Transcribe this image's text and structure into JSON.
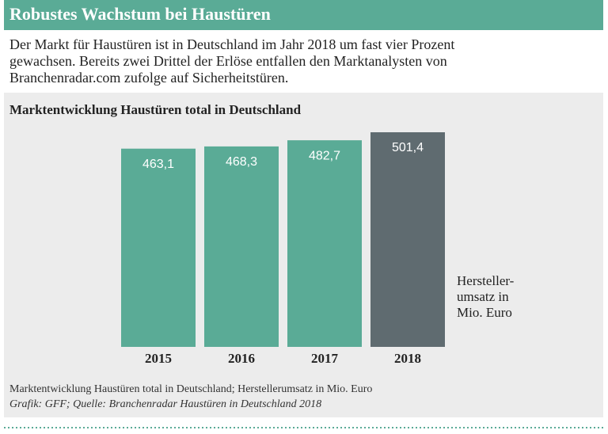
{
  "title": "Robustes Wachstum bei Haustüren",
  "intro_lines": [
    "Der Markt für Haustüren ist in Deutschland im Jahr 2018 um fast vier Prozent",
    "gewachsen. Bereits zwei Drittel der Erlöse entfallen den Marktanalysten von",
    "Branchenradar.com zufolge auf Sicherheitstüren."
  ],
  "chart_data": {
    "type": "bar",
    "title": "Marktentwicklung Haustüren total in Deutschland",
    "categories": [
      "2015",
      "2016",
      "2017",
      "2018"
    ],
    "values": [
      463.1,
      468.3,
      482.7,
      501.4
    ],
    "value_labels": [
      "463,1",
      "468,3",
      "482,7",
      "501,4"
    ],
    "colors": [
      "#5aab96",
      "#5aab96",
      "#5aab96",
      "#5f6b70"
    ],
    "y_label_lines": [
      "Hersteller-",
      "umsatz in",
      "Mio. Euro"
    ]
  },
  "footnote_lines": [
    "Marktentwicklung Haustüren total in Deutschland; Herstellerumsatz in Mio. Euro",
    "Grafik: GFF; Quelle: Branchenradar Haustüren in Deutschland 2018"
  ]
}
